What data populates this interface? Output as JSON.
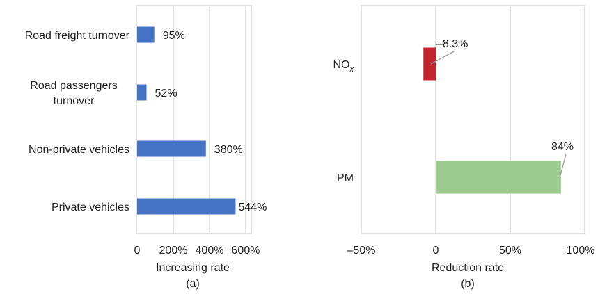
{
  "chart_data": [
    {
      "type": "bar",
      "orientation": "horizontal",
      "panel_label": "(a)",
      "xlabel": "Increasing rate",
      "categories": [
        "Road freight turnover",
        "Road passengers\nturnover",
        "Non-private vehicles",
        "Private vehicles"
      ],
      "values": [
        95,
        52,
        380,
        544
      ],
      "value_labels": [
        "95%",
        "52%",
        "380%",
        "544%"
      ],
      "xlim": [
        0,
        600
      ],
      "xticks": [
        0,
        200,
        400,
        600
      ],
      "xtick_labels": [
        "0",
        "200%",
        "400%",
        "600%"
      ],
      "bar_color": "#4472c4",
      "grid": true
    },
    {
      "type": "bar",
      "orientation": "horizontal",
      "panel_label": "(b)",
      "xlabel": "Reduction rate",
      "categories": [
        "NO",
        "PM"
      ],
      "category_subscripts": [
        "x",
        ""
      ],
      "values": [
        -8.3,
        84
      ],
      "value_labels": [
        "–8.3%",
        "84%"
      ],
      "bar_colors": [
        "#c0282d",
        "#9dcb8f"
      ],
      "xlim": [
        -50,
        100
      ],
      "xticks": [
        -50,
        0,
        50,
        100
      ],
      "xtick_labels": [
        "–50%",
        "0",
        "50%",
        "100%"
      ],
      "grid": true
    }
  ]
}
